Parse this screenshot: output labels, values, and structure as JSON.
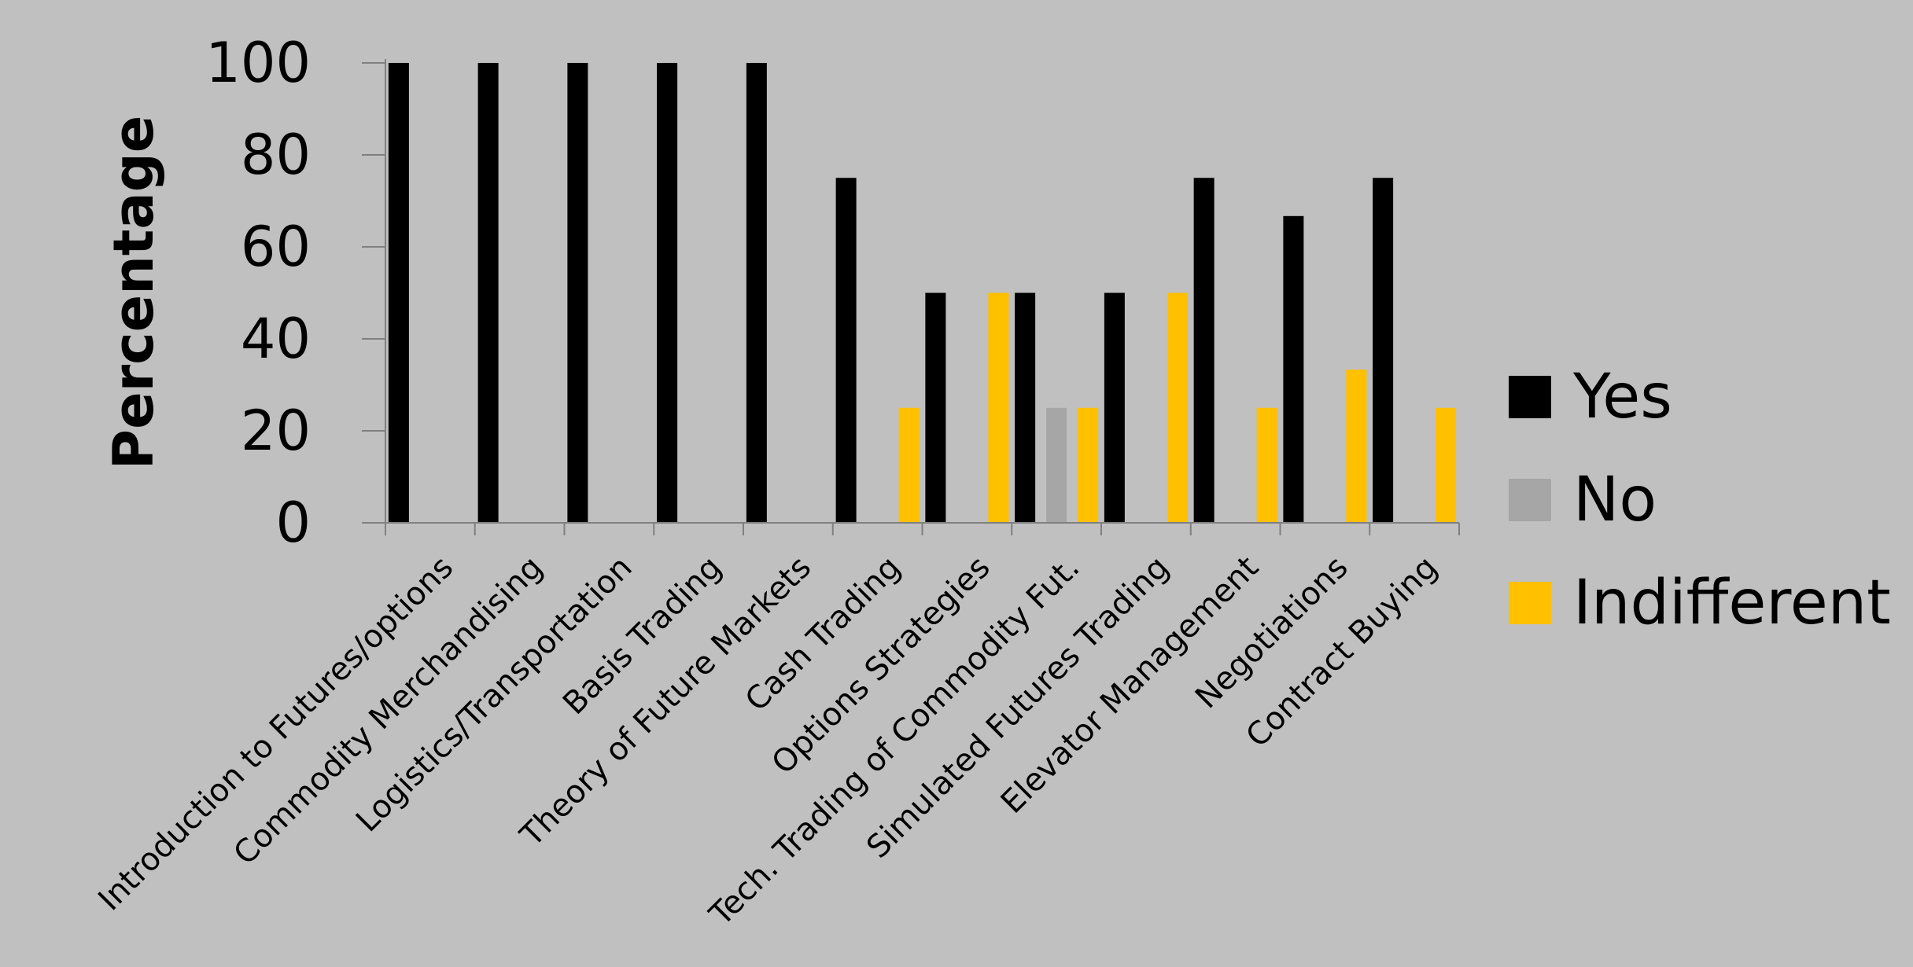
{
  "chart_data": {
    "type": "bar",
    "title": "",
    "xlabel": "",
    "ylabel": "Percentage",
    "ylim": [
      0,
      100
    ],
    "yticks": [
      0,
      20,
      40,
      60,
      80,
      100
    ],
    "grid": false,
    "legend_position": "right",
    "categories": [
      "Introduction to Futures/options",
      "Commodity Merchandising",
      "Logistics/Transportation",
      "Basis Trading",
      "Theory of Future Markets",
      "Cash Trading",
      "Options Strategies",
      "Tech. Trading of Commodity Fut.",
      "Simulated Futures Trading",
      "Elevator Management",
      "Negotiations",
      "Contract Buying"
    ],
    "series": [
      {
        "name": "Yes",
        "color": "#000000",
        "values": [
          100,
          100,
          100,
          100,
          100,
          75,
          50,
          50,
          50,
          75,
          66.7,
          75
        ]
      },
      {
        "name": "No",
        "color": "#a6a6a6",
        "values": [
          0,
          0,
          0,
          0,
          0,
          0,
          0,
          25,
          0,
          0,
          0,
          0
        ]
      },
      {
        "name": "Indifferent",
        "color": "#ffc000",
        "values": [
          0,
          0,
          0,
          0,
          0,
          25,
          50,
          25,
          50,
          25,
          33.3,
          25
        ]
      }
    ]
  }
}
